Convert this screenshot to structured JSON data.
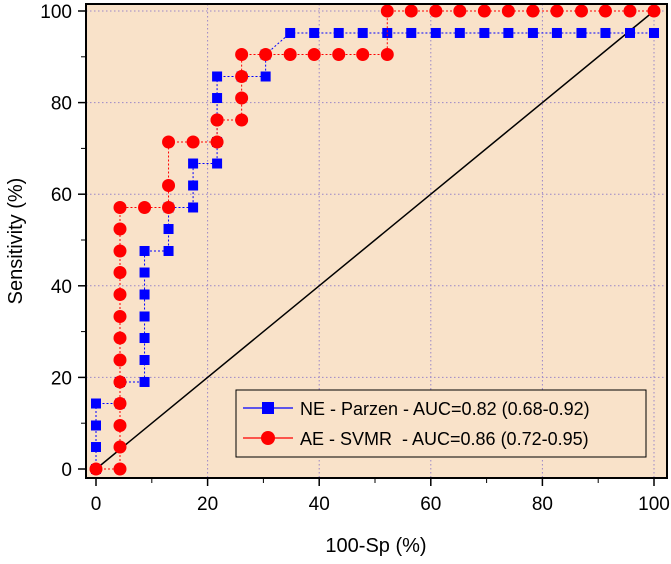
{
  "chart_data": {
    "type": "line",
    "xlabel": "100-Sp (%)",
    "ylabel": "Sensitivity (%)",
    "xlim": [
      0,
      100
    ],
    "ylim": [
      0,
      100
    ],
    "xticks": [
      0,
      20,
      40,
      60,
      80,
      100
    ],
    "yticks": [
      0,
      20,
      40,
      60,
      80,
      100
    ],
    "grid": true,
    "legend_position": "bottom-right",
    "colors": {
      "plot_background": "#f9e2c9",
      "grid": "#9a86c8",
      "reference_line": "#000000"
    },
    "reference_line": {
      "x": [
        0,
        100
      ],
      "y": [
        0,
        100
      ]
    },
    "series": [
      {
        "name": "NE - Parzen - AUC=0.82 (0.68-0.92)",
        "color": "#0000ff",
        "marker": "square",
        "x": [
          0,
          0,
          0,
          0,
          4.3,
          4.3,
          8.7,
          8.7,
          8.7,
          8.7,
          8.7,
          8.7,
          8.7,
          13.0,
          13.0,
          13.0,
          17.4,
          17.4,
          17.4,
          21.7,
          21.7,
          21.7,
          21.7,
          26.1,
          30.4,
          30.4,
          34.8,
          39.1,
          43.5,
          47.8,
          52.2,
          56.5,
          60.9,
          65.2,
          69.6,
          73.9,
          78.3,
          82.6,
          87.0,
          91.3,
          95.7,
          100
        ],
        "y": [
          0,
          4.8,
          9.5,
          14.3,
          14.3,
          19.0,
          19.0,
          23.8,
          28.6,
          33.3,
          38.1,
          42.9,
          47.6,
          47.6,
          52.4,
          57.1,
          57.1,
          61.9,
          66.7,
          66.7,
          71.4,
          81.0,
          85.7,
          85.7,
          85.7,
          90.5,
          95.2,
          95.2,
          95.2,
          95.2,
          95.2,
          95.2,
          95.2,
          95.2,
          95.2,
          95.2,
          95.2,
          95.2,
          95.2,
          95.2,
          95.2,
          95.2
        ]
      },
      {
        "name": "AE - SVMR  - AUC=0.86 (0.72-0.95)",
        "color": "#ff0000",
        "marker": "circle",
        "x": [
          0,
          4.3,
          4.3,
          4.3,
          4.3,
          4.3,
          4.3,
          4.3,
          4.3,
          4.3,
          4.3,
          4.3,
          4.3,
          4.3,
          8.7,
          13.0,
          13.0,
          13.0,
          17.4,
          21.7,
          21.7,
          21.7,
          26.1,
          26.1,
          26.1,
          26.1,
          30.4,
          34.8,
          39.1,
          43.5,
          47.8,
          52.2,
          52.2,
          56.5,
          60.9,
          65.2,
          69.6,
          73.9,
          78.3,
          82.6,
          87.0,
          91.3,
          95.7,
          100
        ],
        "y": [
          0,
          0,
          4.8,
          9.5,
          14.3,
          19.0,
          23.8,
          28.6,
          33.3,
          38.1,
          42.9,
          47.6,
          52.4,
          57.1,
          57.1,
          57.1,
          61.9,
          71.4,
          71.4,
          71.4,
          76.2,
          76.2,
          76.2,
          81.0,
          85.7,
          90.5,
          90.5,
          90.5,
          90.5,
          90.5,
          90.5,
          90.5,
          100,
          100,
          100,
          100,
          100,
          100,
          100,
          100,
          100,
          100,
          100,
          100
        ]
      }
    ]
  }
}
